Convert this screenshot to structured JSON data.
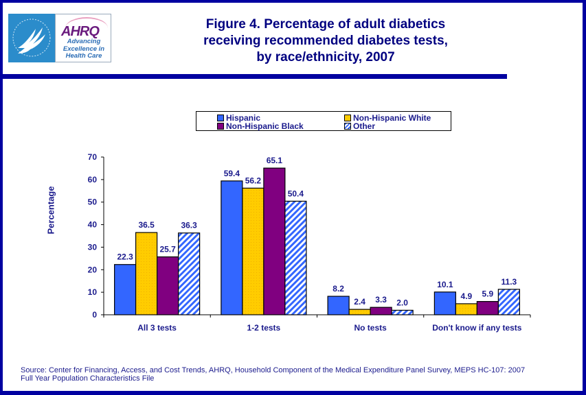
{
  "header": {
    "title_lines": [
      "Figure 4. Percentage of adult diabetics",
      "receiving recommended diabetes tests,",
      "by race/ethnicity, 2007"
    ],
    "logo": {
      "hhs_icon": "hhs-eagle-icon",
      "ahrq_mark": "AHRQ",
      "ahrq_tagline": [
        "Advancing",
        "Excellence in",
        "Health Care"
      ]
    }
  },
  "colors": {
    "frame": "#0000a0",
    "text": "#1a1a8c",
    "hispanic": "#3366ff",
    "nh_white": "#ffcc00",
    "nh_black": "#800080",
    "other_stripe": "#3366ff"
  },
  "chart_data": {
    "type": "bar",
    "title": "Figure 4. Percentage of adult diabetics receiving recommended diabetes tests, by race/ethnicity, 2007",
    "xlabel": "",
    "ylabel": "Percentage",
    "ylim": [
      0,
      70
    ],
    "yticks": [
      0,
      10,
      20,
      30,
      40,
      50,
      60,
      70
    ],
    "grid": false,
    "legend_position": "top-center",
    "categories": [
      "All 3 tests",
      "1-2 tests",
      "No tests",
      "Don't know if any tests"
    ],
    "series": [
      {
        "name": "Hispanic",
        "values": [
          22.3,
          59.4,
          8.2,
          10.1
        ],
        "labels": [
          "22.3",
          "59.4",
          "8.2",
          "10.1"
        ]
      },
      {
        "name": "Non-Hispanic White",
        "values": [
          36.5,
          56.2,
          2.4,
          4.9
        ],
        "labels": [
          "36.5",
          "56.2",
          "2.4",
          "4.9"
        ]
      },
      {
        "name": "Non-Hispanic Black",
        "values": [
          25.7,
          65.1,
          3.3,
          5.9
        ],
        "labels": [
          "25.7",
          "65.1",
          "3.3",
          "5.9"
        ]
      },
      {
        "name": "Other",
        "values": [
          36.3,
          50.4,
          2.0,
          11.3
        ],
        "labels": [
          "36.3",
          "50.4",
          "2.0",
          "11.3"
        ]
      }
    ]
  },
  "footer": {
    "source_line1": "Source: Center for Financing, Access, and Cost Trends, AHRQ, Household Component of the Medical Expenditure Panel Survey, MEPS HC-107: 2007",
    "source_line2": "Full Year Population Characteristics File"
  }
}
